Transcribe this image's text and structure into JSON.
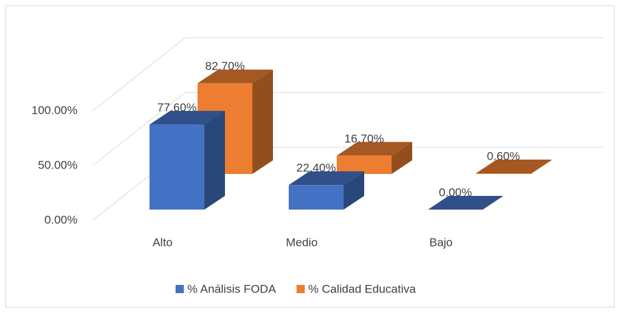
{
  "chart_data": {
    "type": "bar3d",
    "categories": [
      "Alto",
      "Medio",
      "Bajo"
    ],
    "series": [
      {
        "name": "% Análisis FODA",
        "color": "#4472c4",
        "values": [
          77.6,
          22.4,
          0
        ],
        "value_labels": [
          "77.60%",
          "22.40%",
          "0.00%"
        ]
      },
      {
        "name": "% Calidad Educativa",
        "color": "#ed7d31",
        "values": [
          82.7,
          16.7,
          0.6
        ],
        "value_labels": [
          "82.70%",
          "16.70%",
          "0.60%"
        ]
      }
    ],
    "ylim": [
      0,
      100
    ],
    "yticks": [
      {
        "value": 0,
        "label": "0.00%"
      },
      {
        "value": 50,
        "label": "50.00%"
      },
      {
        "value": 100,
        "label": "100.00%"
      }
    ],
    "grid": true,
    "legend": "bottom"
  }
}
